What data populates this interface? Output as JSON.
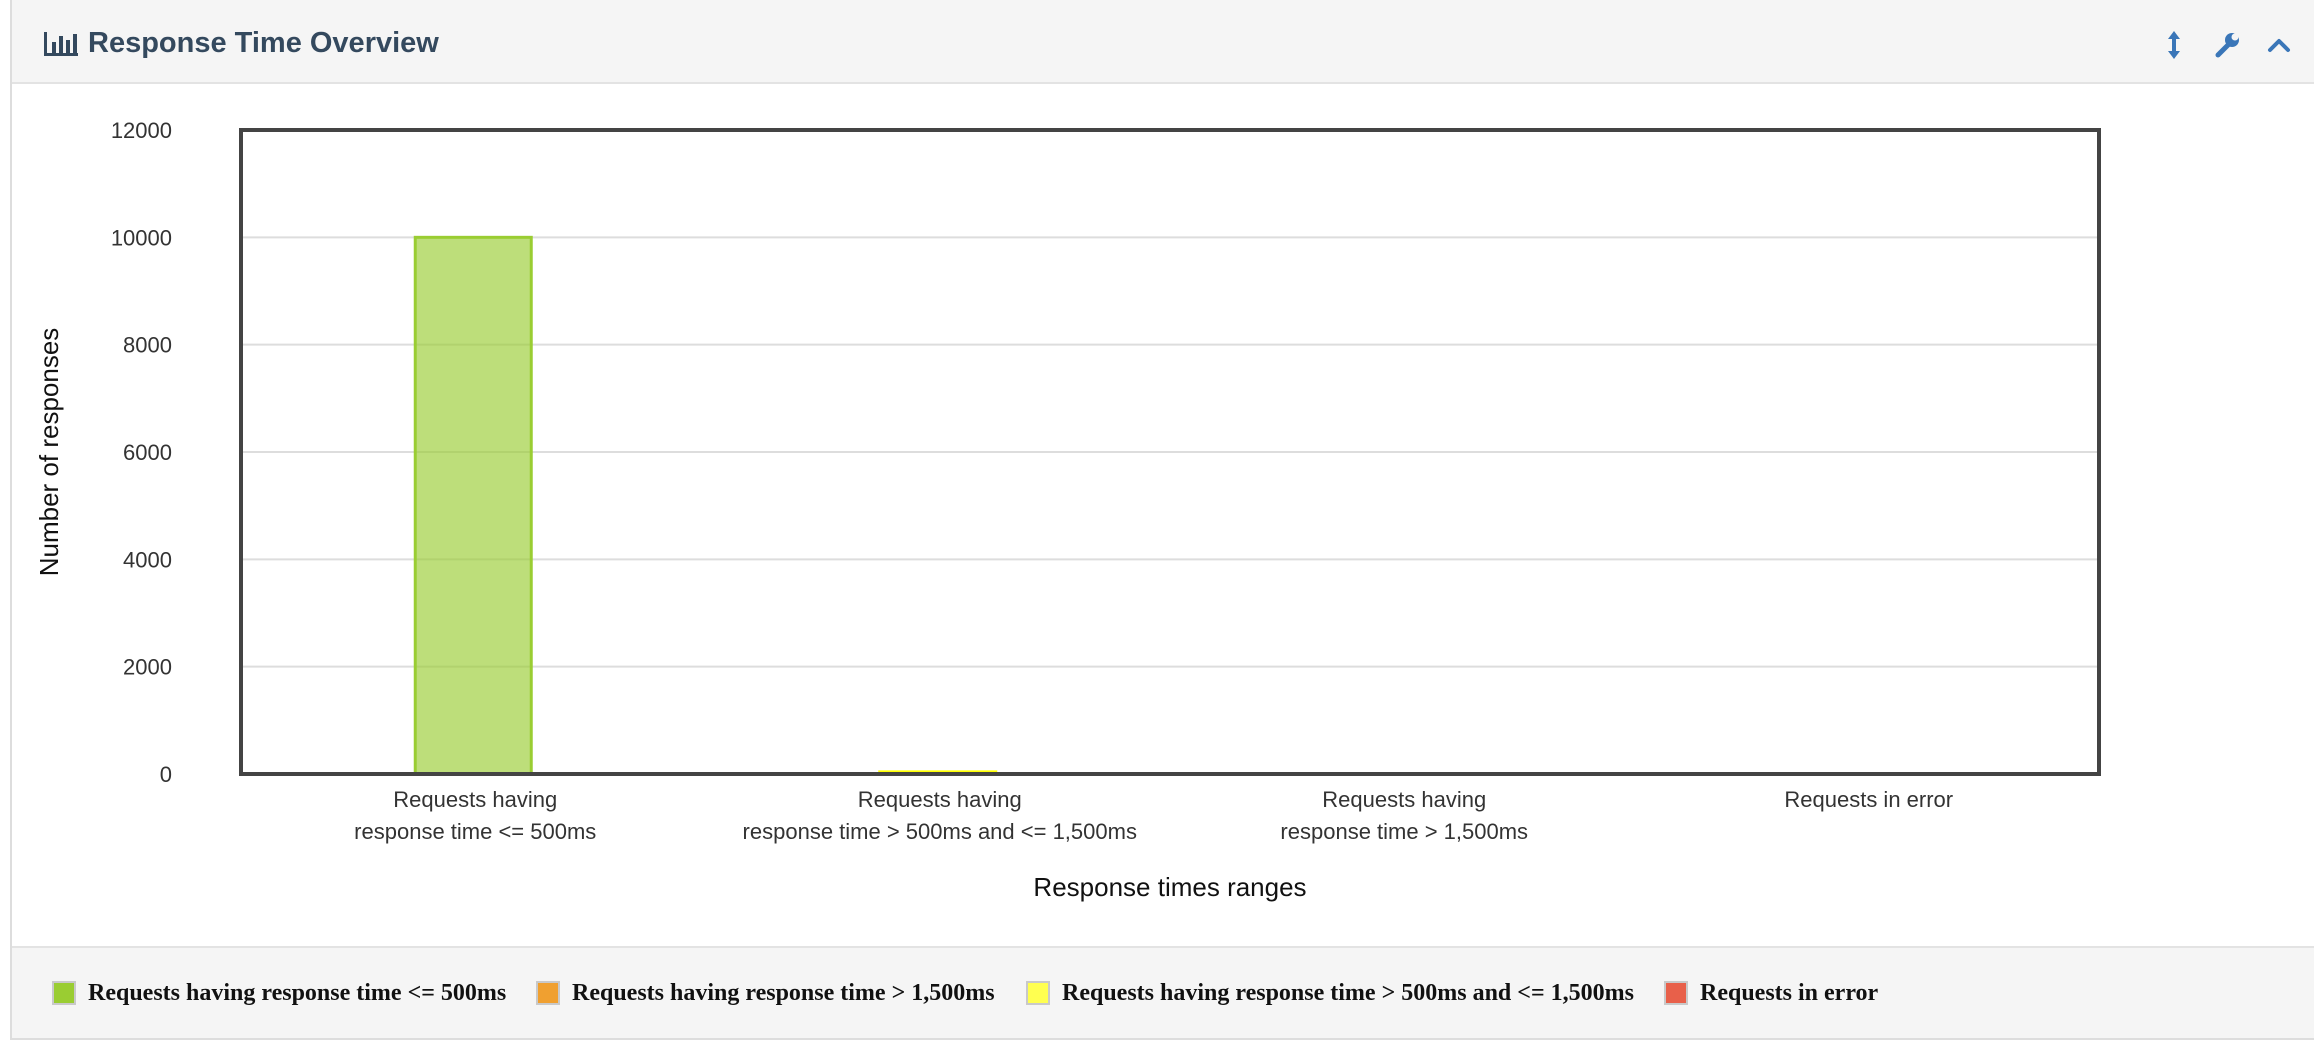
{
  "panel": {
    "title": "Response Time Overview",
    "icons": [
      "bar-chart-icon",
      "resize-vertical-icon",
      "wrench-icon",
      "chevron-up-icon"
    ]
  },
  "chart_data": {
    "type": "bar",
    "xlabel": "Response times ranges",
    "ylabel": "Number of responses",
    "ylim": [
      0,
      12000
    ],
    "yticks": [
      "0",
      "2000",
      "4000",
      "6000",
      "8000",
      "10000",
      "12000"
    ],
    "grid": true,
    "categories": [
      [
        "Requests having",
        "response time <= 500ms"
      ],
      [
        "Requests having",
        "response time > 500ms and <= 1,500ms"
      ],
      [
        "Requests having",
        "response time > 1,500ms"
      ],
      [
        "Requests in error"
      ]
    ],
    "values": [
      10000,
      40,
      0,
      0
    ],
    "colors": [
      "#9acd32",
      "#ffff00",
      "#ff9900",
      "#ff4500"
    ],
    "legend_position": "bottom",
    "legend": [
      {
        "label": "Requests having response time <= 500ms",
        "color": "#9acd32"
      },
      {
        "label": "Requests having response time > 1,500ms",
        "color": "#f0a030"
      },
      {
        "label": "Requests having response time > 500ms and <= 1,500ms",
        "color": "#ffff50"
      },
      {
        "label": "Requests in error",
        "color": "#e8604a"
      }
    ]
  }
}
